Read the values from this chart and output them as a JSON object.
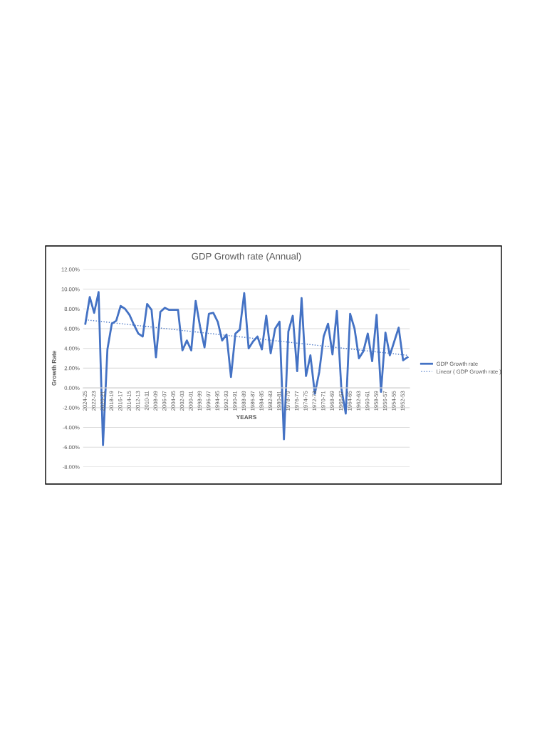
{
  "chart_data": {
    "type": "line",
    "title": "GDP Growth rate (Annual)",
    "xlabel": "YEARS",
    "ylabel": "Growth Rate",
    "categories": [
      "2024-25",
      null,
      "2022-23",
      null,
      "2020-21",
      null,
      "2018-19",
      null,
      "2016-17",
      null,
      "2014-15",
      null,
      "2012-13",
      null,
      "2010-11",
      null,
      "2008-09",
      null,
      "2006-07",
      null,
      "2004-05",
      null,
      "2002-03",
      null,
      "2000-01",
      null,
      "1998-99",
      null,
      "1996-97",
      null,
      "1994-95",
      null,
      "1992-93",
      null,
      "1990-91",
      null,
      "1988-89",
      null,
      "1986-87",
      null,
      "1984-85",
      null,
      "1982-83",
      null,
      "1980-81",
      null,
      "1978-79",
      null,
      "1976-77",
      null,
      "1974-75",
      null,
      "1972-73",
      null,
      "1970-71",
      null,
      "1968-69",
      null,
      "1966-67",
      null,
      "1964-65",
      null,
      "1962-63",
      null,
      "1960-61",
      null,
      "1958-59",
      null,
      "1956-57",
      null,
      "1954-55",
      null,
      "1952-53",
      null
    ],
    "series": [
      {
        "name": "GDP Growth rate",
        "color": "#4472c4",
        "line_style": "solid",
        "values": [
          6.5,
          9.2,
          7.6,
          9.7,
          -5.8,
          3.9,
          6.5,
          6.8,
          8.3,
          8.0,
          7.4,
          6.4,
          5.5,
          5.2,
          8.5,
          7.9,
          3.1,
          7.7,
          8.1,
          7.9,
          7.9,
          7.9,
          3.8,
          4.8,
          3.8,
          8.8,
          6.2,
          4.1,
          7.5,
          7.6,
          6.7,
          4.8,
          5.4,
          1.1,
          5.5,
          5.9,
          9.6,
          4.0,
          4.7,
          5.2,
          3.9,
          7.3,
          3.5,
          6.0,
          6.7,
          -5.2,
          5.7,
          7.3,
          1.7,
          9.1,
          1.2,
          3.3,
          -0.6,
          1.6,
          5.2,
          6.5,
          3.4,
          7.8,
          0.0,
          -2.6,
          7.5,
          6.0,
          3.0,
          3.7,
          5.5,
          2.7,
          7.4,
          -0.4,
          5.6,
          3.3,
          4.7,
          6.1,
          2.8,
          3.1
        ]
      },
      {
        "name": "Linear ( GDP Growth rate )",
        "color": "#4472c4",
        "line_style": "dotted",
        "values": [
          6.9,
          null,
          null,
          null,
          null,
          null,
          null,
          null,
          null,
          null,
          null,
          null,
          null,
          null,
          null,
          null,
          null,
          null,
          null,
          null,
          null,
          null,
          null,
          null,
          null,
          null,
          null,
          null,
          null,
          null,
          null,
          null,
          null,
          null,
          null,
          null,
          null,
          null,
          null,
          null,
          null,
          null,
          null,
          null,
          null,
          null,
          null,
          null,
          null,
          null,
          null,
          null,
          null,
          null,
          null,
          null,
          null,
          null,
          null,
          null,
          null,
          null,
          null,
          null,
          null,
          null,
          null,
          null,
          null,
          null,
          null,
          null,
          null,
          3.3
        ]
      }
    ],
    "ylim": [
      -8,
      12
    ],
    "yticks": [
      {
        "value": -8,
        "label": "-8.00%"
      },
      {
        "value": -6,
        "label": "-6.00%"
      },
      {
        "value": -4,
        "label": "-4.00%"
      },
      {
        "value": -2,
        "label": "-2.00%"
      },
      {
        "value": 0,
        "label": "0.00%"
      },
      {
        "value": 2,
        "label": "2.00%"
      },
      {
        "value": 4,
        "label": "4.00%"
      },
      {
        "value": 6,
        "label": "6.00%"
      },
      {
        "value": 8,
        "label": "8.00%"
      },
      {
        "value": 10,
        "label": "10.00%"
      },
      {
        "value": 12,
        "label": "12.00%"
      }
    ],
    "grid": "y",
    "legend": "right",
    "marker": "none"
  }
}
